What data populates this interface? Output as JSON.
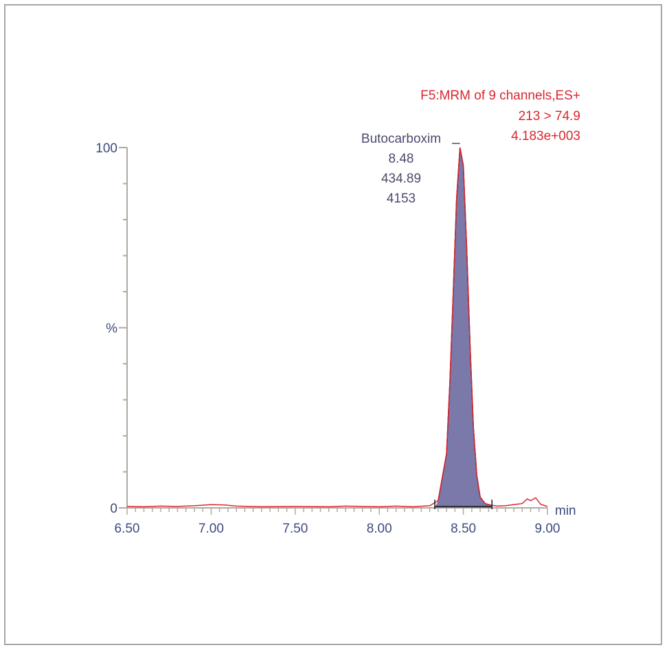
{
  "chart_data": {
    "type": "line",
    "header": [
      "F5:MRM of 9 channels,ES+",
      "213 > 74.9",
      "4.183e+003"
    ],
    "xlabel": "min",
    "ylabel": "%",
    "xlim": [
      6.5,
      9.0
    ],
    "ylim": [
      0,
      100
    ],
    "x_ticks": [
      "6.50",
      "7.00",
      "7.50",
      "8.00",
      "8.50",
      "9.00"
    ],
    "y_tick_labels": [
      {
        "value": 0,
        "label": "0"
      },
      {
        "value": 50,
        "label": "%"
      },
      {
        "value": 100,
        "label": "100"
      }
    ],
    "trace": {
      "color": "#d9262e",
      "x": [
        6.5,
        6.6,
        6.7,
        6.8,
        6.9,
        7.0,
        7.08,
        7.15,
        7.3,
        7.5,
        7.7,
        7.8,
        7.9,
        8.0,
        8.1,
        8.2,
        8.3,
        8.35,
        8.4,
        8.42,
        8.44,
        8.46,
        8.48,
        8.5,
        8.52,
        8.54,
        8.56,
        8.58,
        8.6,
        8.63,
        8.66,
        8.7,
        8.75,
        8.8,
        8.85,
        8.88,
        8.9,
        8.93,
        8.96,
        9.0
      ],
      "y": [
        0.4,
        0.3,
        0.5,
        0.4,
        0.6,
        0.9,
        0.8,
        0.5,
        0.3,
        0.4,
        0.3,
        0.5,
        0.4,
        0.3,
        0.5,
        0.3,
        0.6,
        2.0,
        15,
        35,
        60,
        86,
        100,
        95,
        72,
        45,
        22,
        9,
        3,
        1.2,
        0.8,
        0.5,
        0.6,
        0.9,
        1.2,
        2.5,
        2.0,
        2.8,
        1.0,
        0.4
      ]
    },
    "peak": {
      "fill": "#7b78aa",
      "name": "Butocarboxim",
      "retention_time": "8.48",
      "area": "434.89",
      "height": "4153",
      "start": 8.33,
      "end": 8.67,
      "apex": 8.48
    },
    "grid": false
  }
}
